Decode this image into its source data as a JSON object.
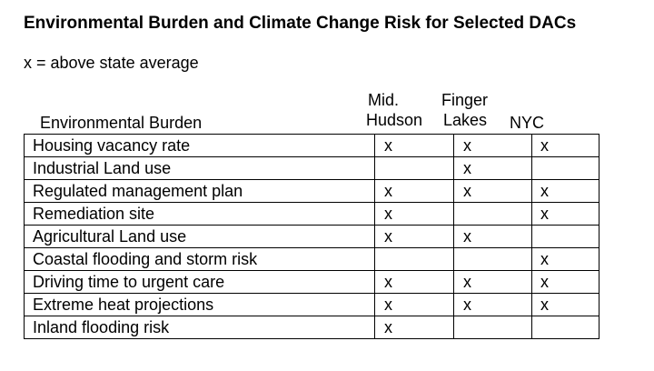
{
  "title": "Environmental Burden and Climate Change Risk for Selected DACs",
  "legend_note": "x = above state average",
  "columns": {
    "burden": "Environmental Burden",
    "mid_hudson": [
      "Mid.",
      "Hudson"
    ],
    "finger_lakes": [
      "Finger",
      "Lakes"
    ],
    "nyc": "NYC"
  },
  "rows": [
    {
      "label": "Housing vacancy rate",
      "mid_hudson": "x",
      "finger_lakes": "x",
      "nyc": "x"
    },
    {
      "label": "Industrial Land use",
      "mid_hudson": "",
      "finger_lakes": "x",
      "nyc": ""
    },
    {
      "label": "Regulated management plan",
      "mid_hudson": "x",
      "finger_lakes": "x",
      "nyc": "x"
    },
    {
      "label": "Remediation site",
      "mid_hudson": "x",
      "finger_lakes": "",
      "nyc": "x"
    },
    {
      "label": "Agricultural Land use",
      "mid_hudson": "x",
      "finger_lakes": "x",
      "nyc": ""
    },
    {
      "label": "Coastal flooding and storm risk",
      "mid_hudson": "",
      "finger_lakes": "",
      "nyc": "x"
    },
    {
      "label": "Driving time to urgent care",
      "mid_hudson": "x",
      "finger_lakes": "x",
      "nyc": "x"
    },
    {
      "label": "Extreme heat projections",
      "mid_hudson": "x",
      "finger_lakes": "x",
      "nyc": "x"
    },
    {
      "label": "Inland flooding risk",
      "mid_hudson": "x",
      "finger_lakes": "",
      "nyc": ""
    }
  ]
}
